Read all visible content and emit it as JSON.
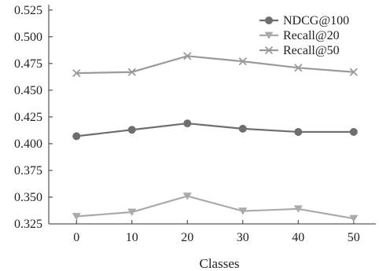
{
  "chart_data": {
    "type": "line",
    "title": "",
    "xlabel": "Classes",
    "ylabel": "",
    "x": [
      0,
      10,
      20,
      30,
      40,
      50
    ],
    "x_ticks": [
      "0",
      "10",
      "20",
      "30",
      "40",
      "50"
    ],
    "y_ticks": [
      "0.325",
      "0.350",
      "0.375",
      "0.400",
      "0.425",
      "0.450",
      "0.475",
      "0.500",
      "0.525"
    ],
    "xlim": [
      -5,
      54
    ],
    "ylim": [
      0.325,
      0.53
    ],
    "grid": false,
    "legend_position": "top-right",
    "series": [
      {
        "name": "NDCG@100",
        "marker": "circle",
        "color": "#6e6e6e",
        "values": [
          0.407,
          0.413,
          0.419,
          0.414,
          0.411,
          0.411
        ]
      },
      {
        "name": "Recall@20",
        "marker": "triangle-down",
        "color": "#aaaaaa",
        "values": [
          0.332,
          0.336,
          0.351,
          0.337,
          0.339,
          0.33
        ]
      },
      {
        "name": "Recall@50",
        "marker": "x",
        "color": "#9a9a9a",
        "values": [
          0.466,
          0.467,
          0.482,
          0.477,
          0.471,
          0.467
        ]
      }
    ]
  }
}
